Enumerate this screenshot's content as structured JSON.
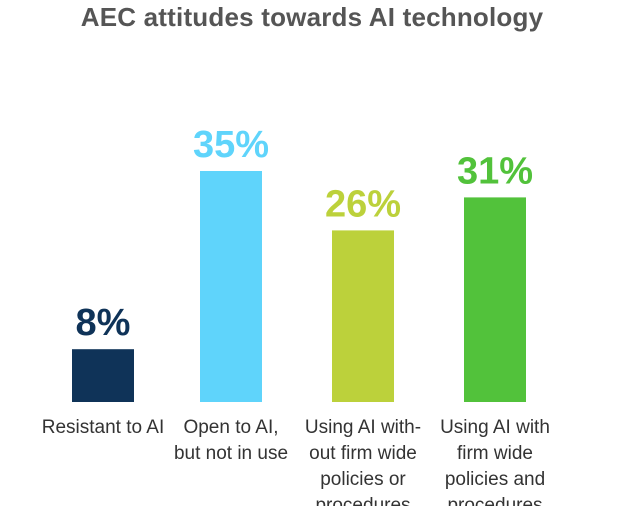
{
  "chart_data": {
    "type": "bar",
    "title": "AEC attitudes towards AI technology",
    "categories": [
      [
        "Resistant to AI"
      ],
      [
        "Open to AI,",
        "but not in use"
      ],
      [
        "Using AI with-",
        "out firm wide",
        "policies or",
        "procedures"
      ],
      [
        "Using AI with",
        "firm wide",
        "policies and",
        "procedures"
      ]
    ],
    "values": [
      8,
      35,
      26,
      31
    ],
    "value_labels": [
      "8%",
      "35%",
      "26%",
      "31%"
    ],
    "colors": [
      "#0f3358",
      "#5fd4fb",
      "#bcd13b",
      "#52c23b"
    ],
    "ylim": [
      0,
      35
    ],
    "grid": false,
    "xlabel": "",
    "ylabel": ""
  }
}
